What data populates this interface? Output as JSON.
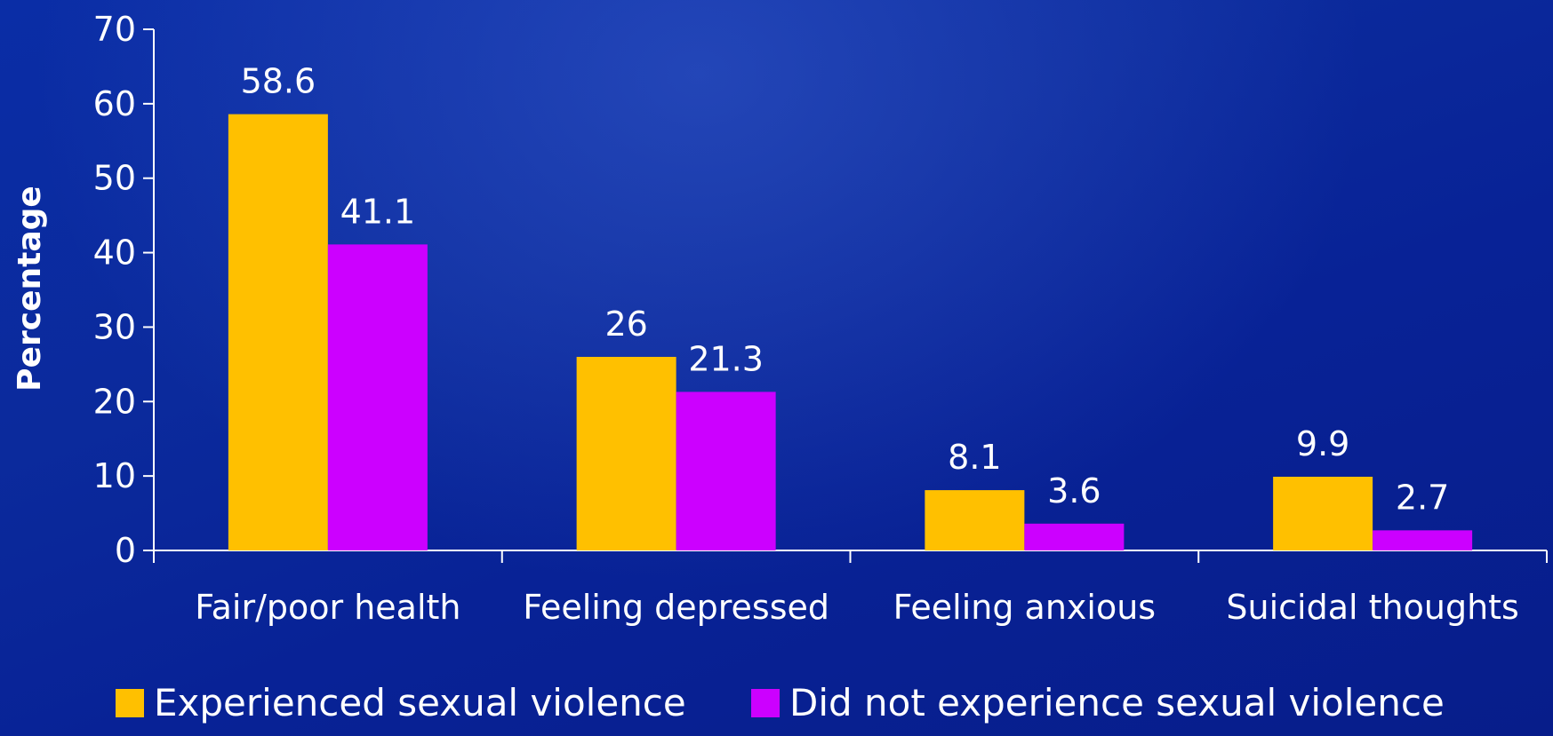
{
  "chart_data": {
    "type": "bar",
    "ylabel": "Percentage",
    "ylim": [
      0,
      70
    ],
    "yticks": [
      0,
      10,
      20,
      30,
      40,
      50,
      60,
      70
    ],
    "categories": [
      "Fair/poor health",
      "Feeling depressed",
      "Feeling anxious",
      "Suicidal thoughts"
    ],
    "series": [
      {
        "name": "Experienced sexual violence",
        "color": "#ffc000",
        "values": [
          58.6,
          26,
          8.1,
          9.9
        ],
        "labels": [
          "58.6",
          "26",
          "8.1",
          "9.9"
        ]
      },
      {
        "name": "Did not experience sexual violence",
        "color": "#cc00ff",
        "values": [
          41.1,
          21.3,
          3.6,
          2.7
        ],
        "labels": [
          "41.1",
          "21.3",
          "3.6",
          "2.7"
        ]
      }
    ],
    "legend_position": "bottom",
    "grid": false
  },
  "colors": {
    "axis": "#ffffff",
    "background": "#0a2a9e"
  }
}
